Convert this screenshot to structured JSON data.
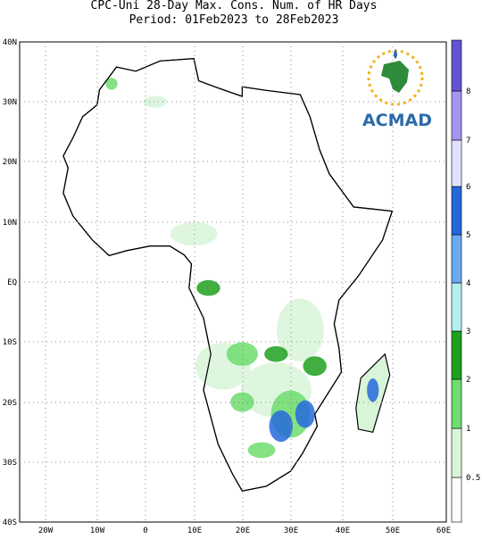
{
  "header": {
    "title_line1": "CPC-Uni 28-Day Max. Cons. Num. of HR Days",
    "title_line2": "Period: 01Feb2023 to 28Feb2023"
  },
  "map": {
    "lat_labels": [
      "40N",
      "30N",
      "20N",
      "10N",
      "EQ",
      "10S",
      "20S",
      "30S",
      "40S"
    ],
    "lon_labels": [
      "20W",
      "10W",
      "0",
      "10E",
      "20E",
      "30E",
      "40E",
      "50E",
      "60E"
    ]
  },
  "logo": {
    "text": "ACMAD"
  },
  "colorbar": {
    "labels": [
      "0.5",
      "1",
      "2",
      "3",
      "4",
      "5",
      "6",
      "7",
      "8"
    ],
    "colors": [
      "#ffffff",
      "#d8f5d8",
      "#6edc6e",
      "#1ea01e",
      "#b4f0f0",
      "#6aaaf0",
      "#2468dc",
      "#e2e2ff",
      "#a496f0",
      "#6454d2"
    ]
  }
}
